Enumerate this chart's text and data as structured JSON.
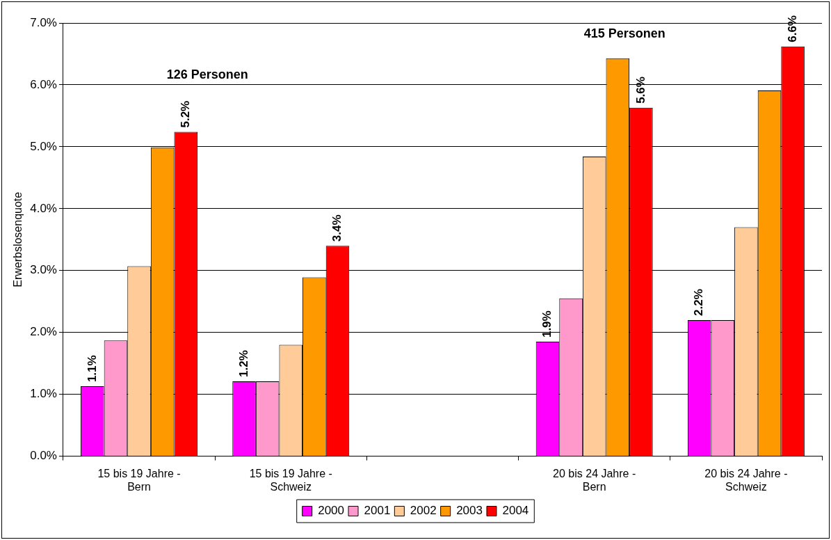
{
  "chart_data": {
    "type": "bar",
    "ylabel": "Erwerbslosenquote",
    "categories": [
      "15 bis 19 Jahre - Bern",
      "15 bis 19 Jahre - Schweiz",
      null,
      "20 bis 24 Jahre - Bern",
      "20 bis 24 Jahre - Schweiz"
    ],
    "series": [
      {
        "name": "2000",
        "color": "#ff00ff",
        "values": [
          1.13,
          1.21,
          null,
          1.85,
          2.2
        ],
        "value_labels": [
          "1.1%",
          "1.2%",
          null,
          "1.9%",
          "2.2%"
        ]
      },
      {
        "name": "2001",
        "color": "#ff99cc",
        "values": [
          1.87,
          1.21,
          null,
          2.55,
          2.2
        ]
      },
      {
        "name": "2002",
        "color": "#ffcc99",
        "values": [
          3.07,
          1.8,
          null,
          4.84,
          3.7
        ]
      },
      {
        "name": "2003",
        "color": "#ff9900",
        "values": [
          4.99,
          2.89,
          null,
          6.43,
          5.91
        ]
      },
      {
        "name": "2004",
        "color": "#ff0000",
        "values": [
          5.24,
          3.4,
          null,
          5.63,
          6.62
        ],
        "value_labels": [
          "5.2%",
          "3.4%",
          null,
          "5.6%",
          "6.6%"
        ]
      }
    ],
    "ylim": [
      0,
      7
    ],
    "yticks": [
      {
        "value": 0,
        "label": "0.0%"
      },
      {
        "value": 1,
        "label": "1.0%"
      },
      {
        "value": 2,
        "label": "2.0%"
      },
      {
        "value": 3,
        "label": "3.0%"
      },
      {
        "value": 4,
        "label": "4.0%"
      },
      {
        "value": 5,
        "label": "5.0%"
      },
      {
        "value": 6,
        "label": "6.0%"
      },
      {
        "value": 7,
        "label": "7.0%"
      }
    ],
    "annotations": [
      "126 Personen",
      "415 Personen"
    ],
    "grid": "y",
    "legend": "bottom"
  }
}
